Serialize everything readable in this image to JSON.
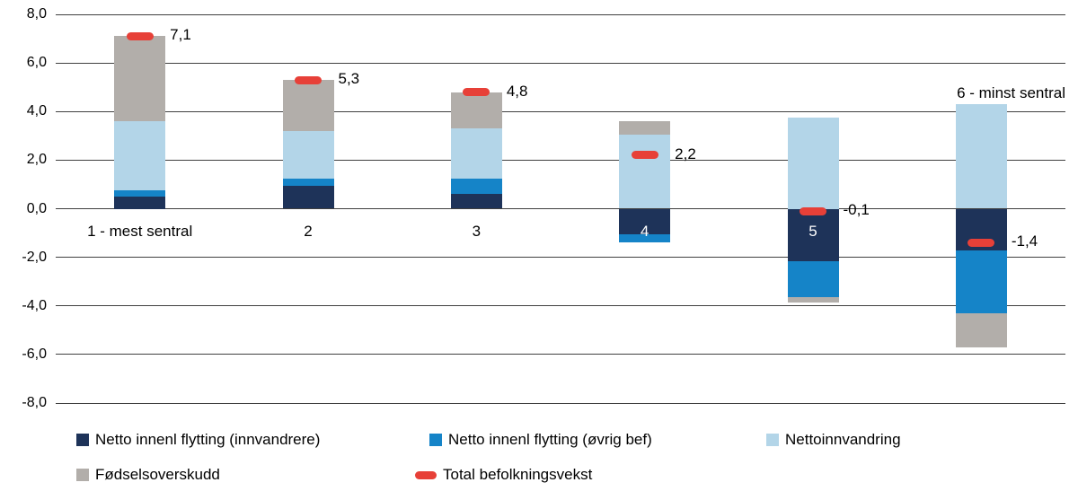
{
  "chart_data": {
    "type": "bar",
    "stacked": true,
    "title": "",
    "xlabel": "",
    "ylabel": "",
    "categories": [
      "1 - mest sentral",
      "2",
      "3",
      "4",
      "5",
      "6 - minst sentral"
    ],
    "category_label_placement": [
      "below-axis",
      "below-axis",
      "below-axis",
      "in-bar",
      "in-bar",
      "above-bar"
    ],
    "series": [
      {
        "name": "Netto innenl flytting (innvandrere)",
        "color": "#1e3359",
        "values": [
          0.5,
          0.95,
          0.6,
          -1.05,
          -2.15,
          -1.7
        ]
      },
      {
        "name": "Netto innenl flytting (øvrig bef)",
        "color": "#1584c8",
        "values": [
          0.25,
          0.3,
          0.65,
          -0.35,
          -1.5,
          -2.6
        ]
      },
      {
        "name": "Nettoinnvandring",
        "color": "#b3d5e8",
        "values": [
          2.85,
          1.95,
          2.05,
          3.05,
          3.75,
          4.3
        ]
      },
      {
        "name": "Fødselsoverskudd",
        "color": "#b2aeaa",
        "values": [
          3.5,
          2.1,
          1.5,
          0.55,
          -0.2,
          -1.4
        ]
      }
    ],
    "marker_series": {
      "name": "Total befolkningsvekst",
      "color": "#e74038",
      "values": [
        7.1,
        5.3,
        4.8,
        2.2,
        -0.1,
        -1.4
      ],
      "labels": [
        "7,1",
        "5,3",
        "4,8",
        "2,2",
        "-0,1",
        "-1,4"
      ]
    },
    "ylim": [
      -8,
      8
    ],
    "yticks": [
      8,
      6,
      4,
      2,
      0,
      -2,
      -4,
      -6,
      -8
    ],
    "ytick_labels": [
      "8,0",
      "6,0",
      "4,0",
      "2,0",
      "0,0",
      "-2,0",
      "-4,0",
      "-6,0",
      "-8,0"
    ],
    "grid": true,
    "legend_position": "bottom",
    "legend_labels": [
      "Netto innenl flytting (innvandrere)",
      "Netto innenl flytting (øvrig bef)",
      "Nettoinnvandring",
      "Fødselsoverskudd",
      "Total befolkningsvekst"
    ]
  }
}
